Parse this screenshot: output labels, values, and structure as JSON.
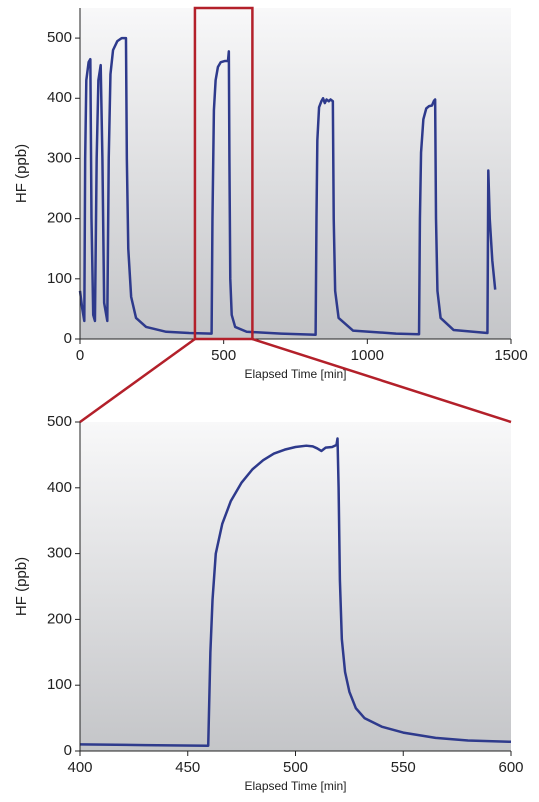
{
  "chart_data": [
    {
      "type": "line",
      "xlabel": "Elapsed Time [min]",
      "ylabel": "HF (ppb)",
      "color": "#2e3a8c",
      "xlim": [
        0,
        1500
      ],
      "ylim": [
        0,
        550
      ],
      "xticks": [
        0,
        500,
        1000,
        1500
      ],
      "yticks": [
        0,
        100,
        200,
        300,
        400,
        500
      ],
      "x": [
        0,
        8,
        15,
        18,
        22,
        30,
        36,
        40,
        46,
        52,
        58,
        64,
        72,
        78,
        84,
        95,
        100,
        106,
        115,
        130,
        145,
        160,
        163,
        168,
        178,
        195,
        230,
        300,
        380,
        458,
        461,
        466,
        472,
        480,
        490,
        505,
        515,
        518,
        520,
        523,
        528,
        540,
        580,
        700,
        820,
        823,
        826,
        832,
        840,
        846,
        852,
        858,
        866,
        872,
        880,
        883,
        888,
        900,
        950,
        1100,
        1180,
        1183,
        1187,
        1195,
        1205,
        1215,
        1225,
        1232,
        1236,
        1239,
        1244,
        1255,
        1300,
        1418,
        1421,
        1426,
        1435,
        1445
      ],
      "values": [
        80,
        50,
        30,
        300,
        430,
        460,
        465,
        200,
        40,
        30,
        300,
        430,
        455,
        300,
        60,
        30,
        300,
        440,
        480,
        495,
        500,
        500,
        300,
        150,
        70,
        35,
        20,
        12,
        10,
        9,
        200,
        380,
        430,
        452,
        460,
        462,
        462,
        478,
        300,
        100,
        40,
        20,
        12,
        9,
        7,
        200,
        330,
        385,
        395,
        400,
        392,
        398,
        395,
        398,
        395,
        200,
        80,
        35,
        14,
        9,
        8,
        200,
        310,
        365,
        383,
        387,
        388,
        396,
        398,
        200,
        80,
        35,
        15,
        10,
        280,
        200,
        130,
        82
      ]
    },
    {
      "type": "line",
      "xlabel": "Elapsed Time [min]",
      "ylabel": "HF (ppb)",
      "color": "#2e3a8c",
      "xlim": [
        400,
        600
      ],
      "ylim": [
        0,
        500
      ],
      "xticks": [
        400,
        450,
        500,
        550,
        600
      ],
      "yticks": [
        0,
        100,
        200,
        300,
        400,
        500
      ],
      "x": [
        400,
        430,
        459.5,
        460.5,
        461.5,
        463,
        466,
        470,
        475,
        480,
        485,
        490,
        495,
        500,
        505,
        508,
        510,
        512,
        514,
        517,
        519,
        519.5,
        520,
        520.6,
        521.5,
        523,
        525,
        528,
        532,
        540,
        550,
        565,
        580,
        600
      ],
      "values": [
        10,
        9,
        8,
        150,
        230,
        300,
        345,
        380,
        408,
        428,
        442,
        452,
        458,
        462,
        464,
        463,
        460,
        456,
        461,
        462,
        465,
        475,
        400,
        260,
        170,
        120,
        90,
        65,
        50,
        37,
        28,
        20,
        16,
        14
      ]
    }
  ]
}
